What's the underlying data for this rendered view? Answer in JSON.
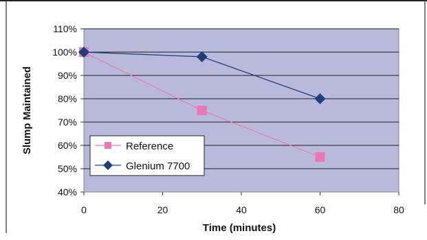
{
  "chart_data": {
    "type": "line",
    "title": "",
    "xlabel": "Time (minutes)",
    "ylabel": "Slump Maintained",
    "xlim": [
      0,
      80
    ],
    "ylim": [
      40,
      110
    ],
    "x_ticks": [
      0,
      20,
      40,
      60,
      80
    ],
    "y_ticks": [
      40,
      50,
      60,
      70,
      80,
      90,
      100,
      110
    ],
    "y_tick_labels": [
      "40%",
      "50%",
      "60%",
      "70%",
      "80%",
      "90%",
      "100%",
      "110%"
    ],
    "x_tick_labels": [
      "0",
      "20",
      "40",
      "60",
      "80"
    ],
    "grid": "horizontal",
    "legend_position": "lower-left",
    "plot_background": "#b9b9dc",
    "series": [
      {
        "name": "Reference",
        "marker": "square",
        "color": "#e879b4",
        "x": [
          0,
          30,
          60
        ],
        "y": [
          100,
          75,
          55
        ]
      },
      {
        "name": "Glenium 7700",
        "marker": "diamond",
        "color": "#1f3f7a",
        "x": [
          0,
          30,
          60
        ],
        "y": [
          100,
          98,
          80
        ]
      }
    ]
  }
}
